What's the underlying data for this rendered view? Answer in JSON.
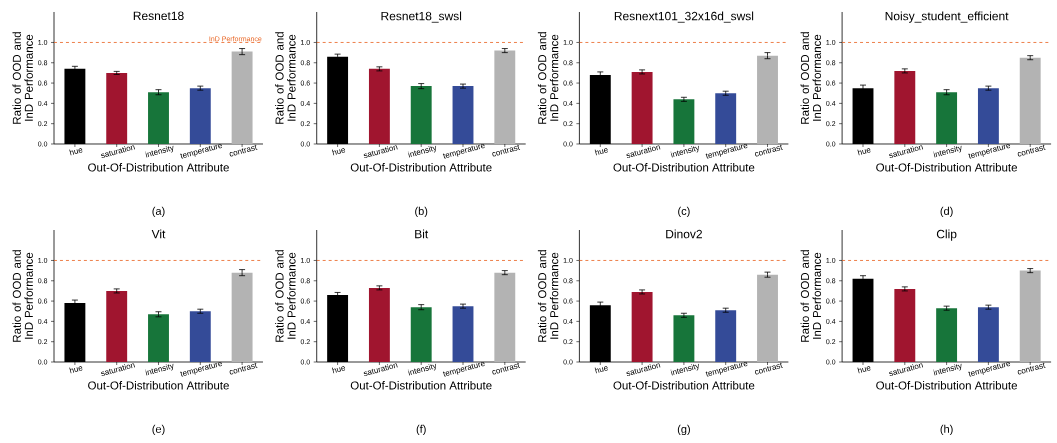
{
  "chart_data": [
    {
      "type": "bar",
      "title": "Resnet18",
      "xlabel": "Out-Of-Distribution Attribute",
      "ylabel": "Ratio of OOD and InD Performance",
      "categories": [
        "hue",
        "saturation",
        "intensity",
        "temperature",
        "contrast"
      ],
      "values": [
        0.74,
        0.7,
        0.51,
        0.55,
        0.91
      ],
      "errors": [
        0.025,
        0.015,
        0.025,
        0.02,
        0.03
      ],
      "colors": [
        "#000000",
        "#a0152f",
        "#17753a",
        "#344b98",
        "#b3b3b3"
      ],
      "ylim": [
        0,
        1.3
      ],
      "yticks": [
        {
          "value": 0,
          "label": "0.0"
        },
        {
          "value": 0.2,
          "label": "0.2"
        },
        {
          "value": 0.4,
          "label": "0.4"
        },
        {
          "value": 0.6,
          "label": "0.6"
        },
        {
          "value": 0.8,
          "label": "0.8"
        },
        {
          "value": 1,
          "label": "1.0"
        }
      ],
      "ref_lines": [
        {
          "axis": "y",
          "value": 1,
          "label": "InD Performance",
          "color": "#e8601c",
          "line_style": "dashed"
        }
      ],
      "annotations": [
        "(a)"
      ]
    },
    {
      "type": "bar",
      "title": "Resnet18_swsl",
      "xlabel": "Out-Of-Distribution Attribute",
      "ylabel": "Ratio of OOD and InD Performance",
      "categories": [
        "hue",
        "saturation",
        "intensity",
        "temperature",
        "contrast"
      ],
      "values": [
        0.86,
        0.74,
        0.57,
        0.57,
        0.92
      ],
      "errors": [
        0.025,
        0.02,
        0.025,
        0.02,
        0.02
      ],
      "colors": [
        "#000000",
        "#a0152f",
        "#17753a",
        "#344b98",
        "#b3b3b3"
      ],
      "ylim": [
        0,
        1.3
      ],
      "yticks": [
        {
          "value": 0,
          "label": "0.0"
        },
        {
          "value": 0.2,
          "label": "0.2"
        },
        {
          "value": 0.4,
          "label": "0.4"
        },
        {
          "value": 0.6,
          "label": "0.6"
        },
        {
          "value": 0.8,
          "label": "0.8"
        },
        {
          "value": 1,
          "label": "1.0"
        }
      ],
      "ref_lines": [
        {
          "axis": "y",
          "value": 1,
          "color": "#e8601c",
          "line_style": "dashed"
        }
      ],
      "annotations": [
        "(b)"
      ]
    },
    {
      "type": "bar",
      "title": "Resnext101_32x16d_swsl",
      "xlabel": "Out-Of-Distribution Attribute",
      "ylabel": "Ratio of OOD and InD Performance",
      "categories": [
        "hue",
        "saturation",
        "intensity",
        "temperature",
        "contrast"
      ],
      "values": [
        0.68,
        0.71,
        0.44,
        0.5,
        0.87
      ],
      "errors": [
        0.03,
        0.02,
        0.02,
        0.02,
        0.03
      ],
      "colors": [
        "#000000",
        "#a0152f",
        "#17753a",
        "#344b98",
        "#b3b3b3"
      ],
      "ylim": [
        0,
        1.3
      ],
      "yticks": [
        {
          "value": 0,
          "label": "0.0"
        },
        {
          "value": 0.2,
          "label": "0.2"
        },
        {
          "value": 0.4,
          "label": "0.4"
        },
        {
          "value": 0.6,
          "label": "0.6"
        },
        {
          "value": 0.8,
          "label": "0.8"
        },
        {
          "value": 1,
          "label": "1.0"
        }
      ],
      "ref_lines": [
        {
          "axis": "y",
          "value": 1,
          "color": "#e8601c",
          "line_style": "dashed"
        }
      ],
      "annotations": [
        "(c)"
      ]
    },
    {
      "type": "bar",
      "title": "Noisy_student_efficient",
      "xlabel": "Out-Of-Distribution Attribute",
      "ylabel": "Ratio of OOD and InD Performance",
      "categories": [
        "hue",
        "saturation",
        "intensity",
        "temperature",
        "contrast"
      ],
      "values": [
        0.55,
        0.72,
        0.51,
        0.55,
        0.85
      ],
      "errors": [
        0.03,
        0.02,
        0.025,
        0.02,
        0.02
      ],
      "colors": [
        "#000000",
        "#a0152f",
        "#17753a",
        "#344b98",
        "#b3b3b3"
      ],
      "ylim": [
        0,
        1.3
      ],
      "yticks": [
        {
          "value": 0,
          "label": "0.0"
        },
        {
          "value": 0.2,
          "label": "0.2"
        },
        {
          "value": 0.4,
          "label": "0.4"
        },
        {
          "value": 0.6,
          "label": "0.6"
        },
        {
          "value": 0.8,
          "label": "0.8"
        },
        {
          "value": 1,
          "label": "1.0"
        }
      ],
      "ref_lines": [
        {
          "axis": "y",
          "value": 1,
          "color": "#e8601c",
          "line_style": "dashed"
        }
      ],
      "annotations": [
        "(d)"
      ]
    },
    {
      "type": "bar",
      "title": "Vit",
      "xlabel": "Out-Of-Distribution Attribute",
      "ylabel": "Ratio of OOD and InD Performance",
      "categories": [
        "hue",
        "saturation",
        "intensity",
        "temperature",
        "contrast"
      ],
      "values": [
        0.58,
        0.7,
        0.47,
        0.5,
        0.88
      ],
      "errors": [
        0.03,
        0.02,
        0.025,
        0.02,
        0.03
      ],
      "colors": [
        "#000000",
        "#a0152f",
        "#17753a",
        "#344b98",
        "#b3b3b3"
      ],
      "ylim": [
        0,
        1.3
      ],
      "yticks": [
        {
          "value": 0,
          "label": "0.0"
        },
        {
          "value": 0.2,
          "label": "0.2"
        },
        {
          "value": 0.4,
          "label": "0.4"
        },
        {
          "value": 0.6,
          "label": "0.6"
        },
        {
          "value": 0.8,
          "label": "0.8"
        },
        {
          "value": 1,
          "label": "1.0"
        }
      ],
      "ref_lines": [
        {
          "axis": "y",
          "value": 1,
          "color": "#e8601c",
          "line_style": "dashed"
        }
      ],
      "annotations": [
        "(e)"
      ]
    },
    {
      "type": "bar",
      "title": "Bit",
      "xlabel": "Out-Of-Distribution Attribute",
      "ylabel": "Ratio of OOD and InD Performance",
      "categories": [
        "hue",
        "saturation",
        "intensity",
        "temperature",
        "contrast"
      ],
      "values": [
        0.66,
        0.73,
        0.54,
        0.55,
        0.88
      ],
      "errors": [
        0.025,
        0.02,
        0.025,
        0.02,
        0.02
      ],
      "colors": [
        "#000000",
        "#a0152f",
        "#17753a",
        "#344b98",
        "#b3b3b3"
      ],
      "ylim": [
        0,
        1.3
      ],
      "yticks": [
        {
          "value": 0,
          "label": "0.0"
        },
        {
          "value": 0.2,
          "label": "0.2"
        },
        {
          "value": 0.4,
          "label": "0.4"
        },
        {
          "value": 0.6,
          "label": "0.6"
        },
        {
          "value": 0.8,
          "label": "0.8"
        },
        {
          "value": 1,
          "label": "1.0"
        }
      ],
      "ref_lines": [
        {
          "axis": "y",
          "value": 1,
          "color": "#e8601c",
          "line_style": "dashed"
        }
      ],
      "annotations": [
        "(f)"
      ]
    },
    {
      "type": "bar",
      "title": "Dinov2",
      "xlabel": "Out-Of-Distribution Attribute",
      "ylabel": "Ratio of OOD and InD Performance",
      "categories": [
        "hue",
        "saturation",
        "intensity",
        "temperature",
        "contrast"
      ],
      "values": [
        0.56,
        0.69,
        0.46,
        0.51,
        0.86
      ],
      "errors": [
        0.03,
        0.02,
        0.02,
        0.02,
        0.025
      ],
      "colors": [
        "#000000",
        "#a0152f",
        "#17753a",
        "#344b98",
        "#b3b3b3"
      ],
      "ylim": [
        0,
        1.3
      ],
      "yticks": [
        {
          "value": 0,
          "label": "0.0"
        },
        {
          "value": 0.2,
          "label": "0.2"
        },
        {
          "value": 0.4,
          "label": "0.4"
        },
        {
          "value": 0.6,
          "label": "0.6"
        },
        {
          "value": 0.8,
          "label": "0.8"
        },
        {
          "value": 1,
          "label": "1.0"
        }
      ],
      "ref_lines": [
        {
          "axis": "y",
          "value": 1,
          "color": "#e8601c",
          "line_style": "dashed"
        }
      ],
      "annotations": [
        "(g)"
      ]
    },
    {
      "type": "bar",
      "title": "Clip",
      "xlabel": "Out-Of-Distribution Attribute",
      "ylabel": "Ratio of OOD and InD Performance",
      "categories": [
        "hue",
        "saturation",
        "intensity",
        "temperature",
        "contrast"
      ],
      "values": [
        0.82,
        0.72,
        0.53,
        0.54,
        0.9
      ],
      "errors": [
        0.03,
        0.02,
        0.02,
        0.02,
        0.02
      ],
      "colors": [
        "#000000",
        "#a0152f",
        "#17753a",
        "#344b98",
        "#b3b3b3"
      ],
      "ylim": [
        0,
        1.3
      ],
      "yticks": [
        {
          "value": 0,
          "label": "0.0"
        },
        {
          "value": 0.2,
          "label": "0.2"
        },
        {
          "value": 0.4,
          "label": "0.4"
        },
        {
          "value": 0.6,
          "label": "0.6"
        },
        {
          "value": 0.8,
          "label": "0.8"
        },
        {
          "value": 1,
          "label": "1.0"
        }
      ],
      "ref_lines": [
        {
          "axis": "y",
          "value": 1,
          "color": "#e8601c",
          "line_style": "dashed"
        }
      ],
      "annotations": [
        "(h)"
      ]
    }
  ]
}
